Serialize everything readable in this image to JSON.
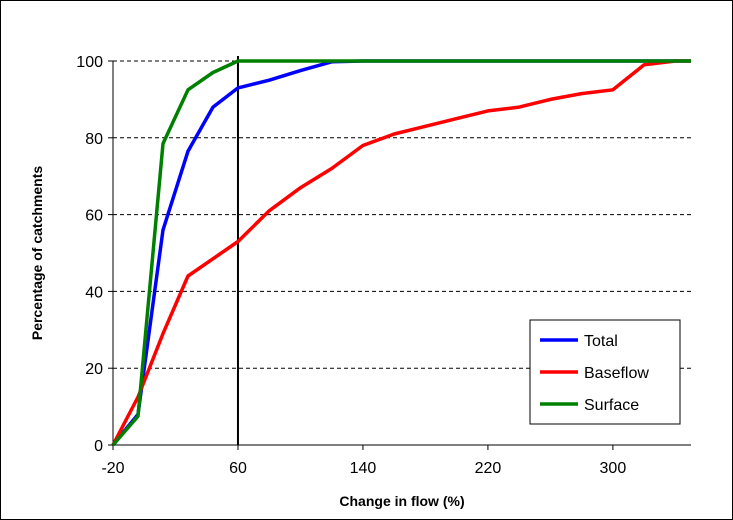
{
  "chart_data": {
    "type": "line",
    "xlabel": "Change in flow (%)",
    "ylabel": "Percentage of catchments",
    "xlim": [
      -20,
      350
    ],
    "ylim": [
      0,
      100
    ],
    "x_ticks": [
      -20,
      60,
      140,
      220,
      300
    ],
    "y_ticks": [
      0,
      20,
      40,
      60,
      80,
      100
    ],
    "grid": "horizontal dashed",
    "legend_position": "bottom-right",
    "reference_line_x": 60,
    "series": [
      {
        "name": "Total",
        "color": "#0000ff",
        "x": [
          -20,
          -4,
          12,
          28,
          44,
          60,
          80,
          100,
          120,
          140,
          160,
          350
        ],
        "y": [
          0,
          8,
          56,
          76.5,
          88,
          93,
          95,
          97.5,
          99.8,
          100,
          100,
          100
        ]
      },
      {
        "name": "Baseflow",
        "color": "#ff0000",
        "x": [
          -20,
          -4,
          12,
          28,
          60,
          80,
          100,
          120,
          140,
          160,
          180,
          200,
          220,
          240,
          260,
          280,
          300,
          320,
          340,
          350
        ],
        "y": [
          0,
          12.5,
          29,
          44,
          53,
          61,
          67,
          72,
          78,
          81,
          83,
          85,
          87,
          88,
          90,
          91.5,
          92.5,
          99,
          100,
          100
        ]
      },
      {
        "name": "Surface",
        "color": "#008000",
        "x": [
          -20,
          -4,
          12,
          28,
          44,
          60,
          80,
          350
        ],
        "y": [
          0,
          7.5,
          78.5,
          92.5,
          97,
          100,
          100,
          100
        ]
      }
    ]
  }
}
